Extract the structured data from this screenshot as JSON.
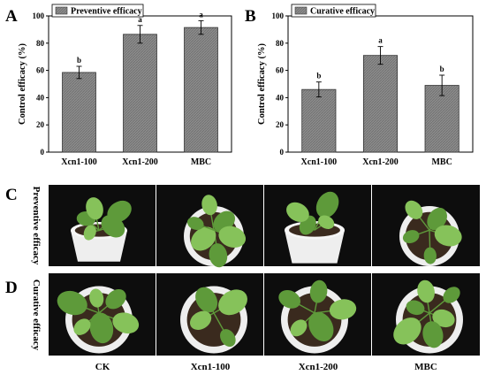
{
  "chart_data": [
    {
      "type": "bar",
      "panel": "A",
      "legend": "Preventive efficacy",
      "ylabel": "Control efficacy (%)",
      "categories": [
        "Xcn1-100",
        "Xcn1-200",
        "MBC"
      ],
      "values": [
        58.5,
        86.5,
        91.5
      ],
      "errors": [
        4.5,
        6.5,
        5.0
      ],
      "significance": [
        "b",
        "a",
        "a"
      ],
      "ylim": [
        0,
        100
      ],
      "yticks": [
        "0",
        "20",
        "40",
        "60",
        "80",
        "100"
      ],
      "legend_position": "top-left",
      "grid": false
    },
    {
      "type": "bar",
      "panel": "B",
      "legend": "Curative efficacy",
      "ylabel": "Control efficacy (%)",
      "categories": [
        "Xcn1-100",
        "Xcn1-200",
        "MBC"
      ],
      "values": [
        46,
        71,
        49
      ],
      "errors": [
        5.5,
        6.5,
        7.5
      ],
      "significance": [
        "b",
        "a",
        "b"
      ],
      "ylim": [
        0,
        100
      ],
      "yticks": [
        "0",
        "20",
        "40",
        "60",
        "80",
        "100"
      ],
      "legend_position": "top-left",
      "grid": false
    }
  ],
  "photos": {
    "panel_C": "C",
    "panel_D": "D",
    "row_C_label": "Preventive efficacy",
    "row_D_label": "Curative efficacy",
    "columns": [
      "CK",
      "Xcn1-100",
      "Xcn1-200",
      "MBC"
    ]
  },
  "colors": {
    "bar_fill": "#8c8c8c",
    "photo_bg": "#0d0d0d",
    "pot": "#eeeeee",
    "soil": "#3a2a1e",
    "leaf": "#86c25a",
    "leaf_dark": "#5e9a3a"
  }
}
